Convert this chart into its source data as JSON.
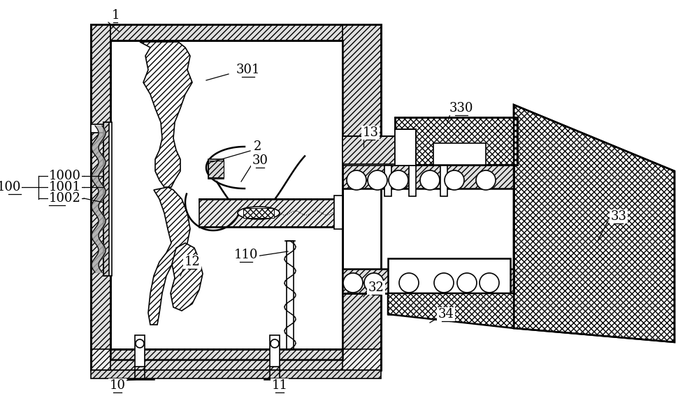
{
  "bg_color": "#ffffff",
  "figsize": [
    10.0,
    5.9
  ],
  "dpi": 100
}
